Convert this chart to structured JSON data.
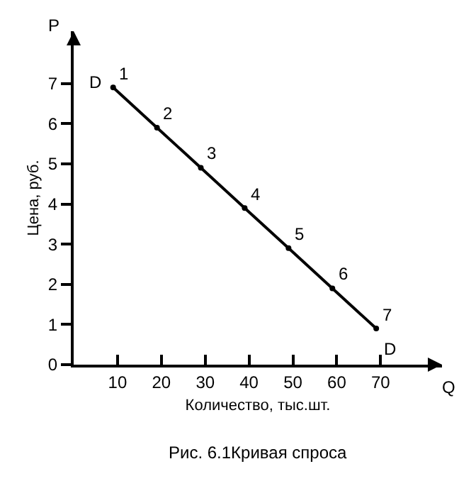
{
  "chart_data": {
    "type": "line",
    "x": [
      9,
      19,
      29,
      39,
      49,
      59,
      69
    ],
    "values": [
      6.9,
      5.9,
      4.9,
      3.9,
      2.9,
      1.9,
      0.9
    ],
    "color": "#000000",
    "marker": "circle",
    "line_style": "solid",
    "legend": false,
    "xlabel": "Количество, тыс.шт.",
    "ylabel": "Цена, руб.",
    "xlim": [
      0,
      84
    ],
    "ylim": [
      0,
      8.3
    ],
    "xticks": [
      10,
      20,
      30,
      40,
      50,
      60,
      70
    ],
    "yticks": [
      0,
      1,
      2,
      3,
      4,
      5,
      6,
      7
    ],
    "annotations": [
      "P",
      "Q",
      "Рис. 6.1Кривая спроса",
      {
        "text": "1",
        "x": 9,
        "y": 6.9
      },
      {
        "text": "2",
        "x": 19,
        "y": 5.9
      },
      {
        "text": "3",
        "x": 29,
        "y": 4.9
      },
      {
        "text": "4",
        "x": 39,
        "y": 3.9
      },
      {
        "text": "5",
        "x": 49,
        "y": 2.9
      },
      {
        "text": "6",
        "x": 59,
        "y": 1.9
      },
      {
        "text": "7",
        "x": 69,
        "y": 0.9
      },
      {
        "text": "D",
        "x": 9,
        "y": 6.9
      },
      {
        "text": "D",
        "x": 69,
        "y": 0.9
      }
    ]
  }
}
